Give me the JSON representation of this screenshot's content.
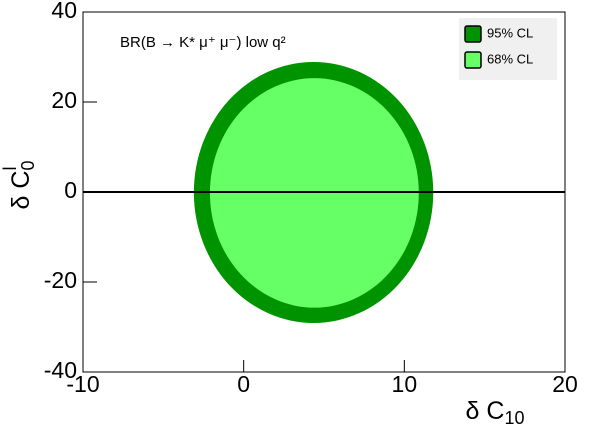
{
  "chart_data": {
    "type": "contour",
    "annotation": "BR(B → K* μ⁺ μ⁻) low q²",
    "x_label": {
      "text": "δ C",
      "sub": "10"
    },
    "y_label": {
      "text": "δ C",
      "sub": "0",
      "sup": "l"
    },
    "xlim": [
      -10,
      20
    ],
    "ylim": [
      -40,
      40
    ],
    "xticks": [
      -10,
      0,
      10,
      20
    ],
    "yticks": [
      -40,
      -20,
      0,
      20,
      40
    ],
    "hline": 0,
    "legend": "top-right",
    "series": [
      {
        "name": "95% CL",
        "color": "#009300",
        "cx": 4.35,
        "cy": -0.1,
        "rx": 7.45,
        "ry": 29
      },
      {
        "name": "68% CL",
        "color": "#66ff66",
        "cx": 4.4,
        "cy": -0.2,
        "rx": 6.5,
        "ry": 25.5
      }
    ]
  }
}
